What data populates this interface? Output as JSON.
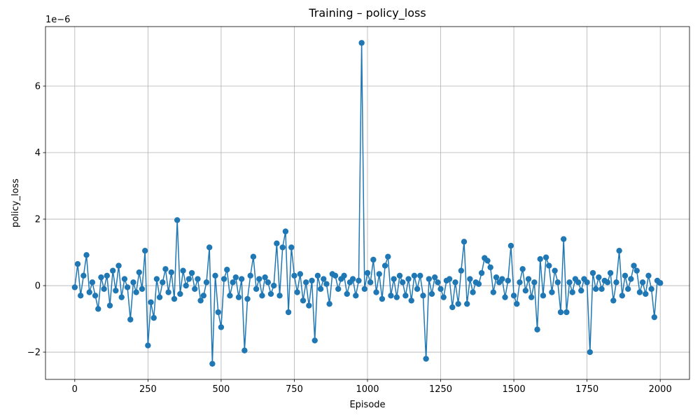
{
  "chart_data": {
    "type": "line",
    "title": "Training – policy_loss",
    "xlabel": "Episode",
    "ylabel": "policy_loss",
    "y_offset": "1e−6",
    "x": [
      0,
      10,
      20,
      30,
      40,
      50,
      60,
      70,
      80,
      90,
      100,
      110,
      120,
      130,
      140,
      150,
      160,
      170,
      180,
      190,
      200,
      210,
      220,
      230,
      240,
      250,
      260,
      270,
      280,
      290,
      300,
      310,
      320,
      330,
      340,
      350,
      360,
      370,
      380,
      390,
      400,
      410,
      420,
      430,
      440,
      450,
      460,
      470,
      480,
      490,
      500,
      510,
      520,
      530,
      540,
      550,
      560,
      570,
      580,
      590,
      600,
      610,
      620,
      630,
      640,
      650,
      660,
      670,
      680,
      690,
      700,
      710,
      720,
      730,
      740,
      750,
      760,
      770,
      780,
      790,
      800,
      810,
      820,
      830,
      840,
      850,
      860,
      870,
      880,
      890,
      900,
      910,
      920,
      930,
      940,
      950,
      960,
      970,
      980,
      990,
      1000,
      1010,
      1020,
      1030,
      1040,
      1050,
      1060,
      1070,
      1080,
      1090,
      1100,
      1110,
      1120,
      1130,
      1140,
      1150,
      1160,
      1170,
      1180,
      1190,
      1200,
      1210,
      1220,
      1230,
      1240,
      1250,
      1260,
      1270,
      1280,
      1290,
      1300,
      1310,
      1320,
      1330,
      1340,
      1350,
      1360,
      1370,
      1380,
      1390,
      1400,
      1410,
      1420,
      1430,
      1440,
      1450,
      1460,
      1470,
      1480,
      1490,
      1500,
      1510,
      1520,
      1530,
      1540,
      1550,
      1560,
      1570,
      1580,
      1590,
      1600,
      1610,
      1620,
      1630,
      1640,
      1650,
      1660,
      1670,
      1680,
      1690,
      1700,
      1710,
      1720,
      1730,
      1740,
      1750,
      1760,
      1770,
      1780,
      1790,
      1800,
      1810,
      1820,
      1830,
      1840,
      1850,
      1860,
      1870,
      1880,
      1890,
      1900,
      1910,
      1920,
      1930,
      1940,
      1950,
      1960,
      1970,
      1980,
      1990,
      2000
    ],
    "series": [
      {
        "name": "policy_loss",
        "color": "#1f77b4",
        "values": [
          -0.05,
          0.65,
          -0.3,
          0.3,
          0.92,
          -0.2,
          0.1,
          -0.3,
          -0.7,
          0.25,
          -0.1,
          0.3,
          -0.6,
          0.45,
          -0.15,
          0.6,
          -0.35,
          0.2,
          -0.05,
          -1.02,
          0.1,
          -0.2,
          0.4,
          -0.1,
          1.05,
          -1.8,
          -0.5,
          -0.97,
          0.2,
          -0.35,
          0.1,
          0.5,
          -0.2,
          0.4,
          -0.4,
          1.97,
          -0.25,
          0.45,
          0.0,
          0.2,
          0.38,
          -0.1,
          0.2,
          -0.45,
          -0.3,
          0.1,
          1.15,
          -2.35,
          0.3,
          -0.8,
          -1.25,
          0.2,
          0.48,
          -0.3,
          0.1,
          0.25,
          -0.35,
          0.2,
          -1.95,
          -0.4,
          0.3,
          0.87,
          -0.1,
          0.2,
          -0.3,
          0.25,
          0.1,
          -0.25,
          0.0,
          1.27,
          -0.3,
          1.15,
          1.63,
          -0.8,
          1.15,
          0.3,
          -0.2,
          0.35,
          -0.45,
          0.1,
          -0.6,
          0.15,
          -1.65,
          0.3,
          -0.1,
          0.2,
          0.05,
          -0.55,
          0.35,
          0.3,
          -0.1,
          0.2,
          0.3,
          -0.25,
          0.1,
          0.2,
          -0.3,
          0.15,
          7.3,
          -0.1,
          0.38,
          0.1,
          0.78,
          -0.2,
          0.35,
          -0.4,
          0.6,
          0.87,
          -0.3,
          0.2,
          -0.35,
          0.3,
          0.1,
          -0.3,
          0.2,
          -0.45,
          0.3,
          -0.1,
          0.3,
          -0.3,
          -2.2,
          0.2,
          -0.25,
          0.25,
          0.1,
          -0.1,
          -0.35,
          0.15,
          0.2,
          -0.65,
          0.1,
          -0.55,
          0.45,
          1.32,
          -0.55,
          0.2,
          -0.2,
          0.1,
          0.05,
          0.38,
          0.83,
          0.75,
          0.55,
          -0.2,
          0.25,
          0.1,
          0.2,
          -0.35,
          0.15,
          1.2,
          -0.3,
          -0.55,
          0.1,
          0.5,
          -0.15,
          0.2,
          -0.35,
          0.1,
          -1.32,
          0.8,
          -0.3,
          0.85,
          0.6,
          -0.2,
          0.45,
          0.1,
          -0.8,
          1.4,
          -0.8,
          0.1,
          -0.2,
          0.2,
          0.1,
          -0.15,
          0.2,
          0.1,
          -2.0,
          0.38,
          -0.1,
          0.25,
          -0.1,
          0.15,
          0.1,
          0.38,
          -0.45,
          0.1,
          1.05,
          -0.3,
          0.3,
          -0.1,
          0.2,
          0.6,
          0.45,
          -0.2,
          0.1,
          -0.25,
          0.3,
          -0.1,
          -0.95,
          0.15,
          0.08
        ]
      }
    ],
    "xlim": [
      -100,
      2100
    ],
    "ylim": [
      -2.82,
      7.79
    ],
    "xticks": [
      0,
      250,
      500,
      750,
      1000,
      1250,
      1500,
      1750,
      2000
    ],
    "yticks": [
      {
        "value": -2,
        "label": "−2"
      },
      0,
      2,
      4,
      6
    ],
    "grid": true
  }
}
